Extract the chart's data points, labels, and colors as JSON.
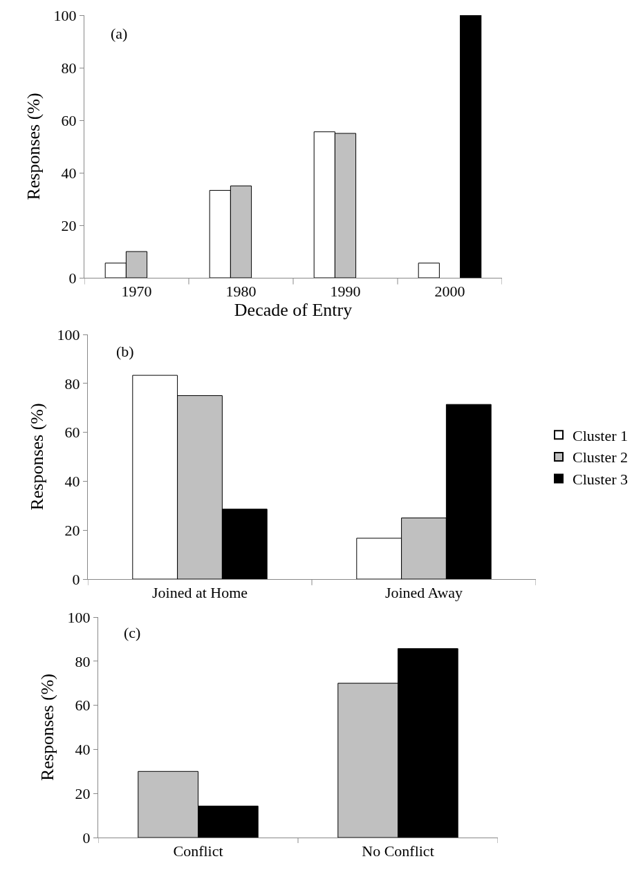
{
  "chart_data": [
    {
      "type": "bar",
      "categories": [
        "1970",
        "1980",
        "1990",
        "2000"
      ],
      "xlabel": "Decade of Entry",
      "ylabel": "Responses (%)",
      "annotations": [
        "(a)"
      ],
      "ylim": [
        0,
        100
      ],
      "yticks": [
        0,
        20,
        40,
        60,
        80,
        100
      ],
      "series": [
        {
          "color": "#ffffff",
          "values": [
            5.6,
            33.3,
            55.6,
            5.6
          ]
        },
        {
          "color": "#c0c0c0",
          "values": [
            10,
            35,
            55,
            null
          ]
        },
        {
          "color": "#000000",
          "values": [
            null,
            null,
            null,
            100
          ]
        }
      ]
    },
    {
      "type": "bar",
      "categories": [
        "Joined at Home",
        "Joined Away"
      ],
      "ylabel": "Responses (%)",
      "annotations": [
        "(b)"
      ],
      "ylim": [
        0,
        100
      ],
      "yticks": [
        0,
        20,
        40,
        60,
        80,
        100
      ],
      "legend": "right",
      "series": [
        {
          "name": "Cluster 1",
          "color": "#ffffff",
          "values": [
            83.3,
            16.7
          ]
        },
        {
          "name": "Cluster 2",
          "color": "#c0c0c0",
          "values": [
            75,
            25
          ]
        },
        {
          "name": "Cluster 3",
          "color": "#000000",
          "values": [
            28.6,
            71.4
          ]
        }
      ]
    },
    {
      "type": "bar",
      "categories": [
        "Conflict",
        "No Conflict"
      ],
      "ylabel": "Responses (%)",
      "annotations": [
        "(c)"
      ],
      "ylim": [
        0,
        100
      ],
      "yticks": [
        0,
        20,
        40,
        60,
        80,
        100
      ],
      "series": [
        {
          "color": "#c0c0c0",
          "values": [
            30,
            70
          ]
        },
        {
          "color": "#000000",
          "values": [
            14.3,
            85.7
          ]
        }
      ]
    }
  ]
}
